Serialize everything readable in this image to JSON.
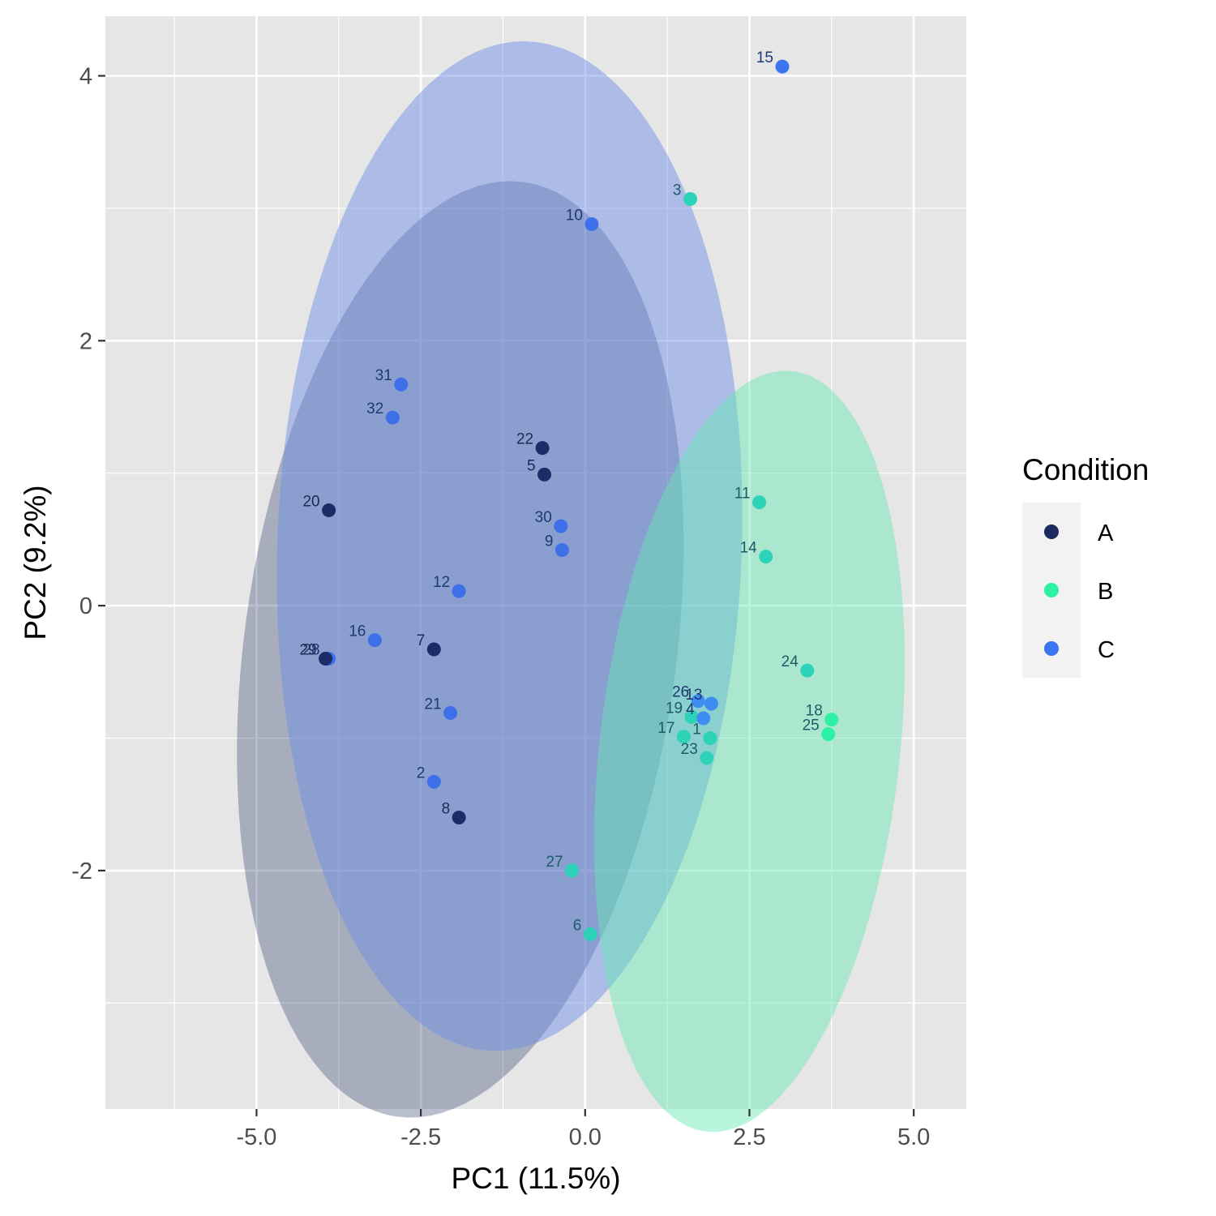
{
  "chart_data": {
    "type": "scatter",
    "title": "",
    "xlabel": "PC1 (11.5%)",
    "ylabel": "PC2 (9.2%)",
    "xlim": [
      -7.3,
      5.8
    ],
    "ylim": [
      -3.8,
      4.45
    ],
    "x_ticks": [
      -5.0,
      -2.5,
      0.0,
      2.5,
      5.0
    ],
    "x_tick_labels": [
      "-5.0",
      "-2.5",
      "0.0",
      "2.5",
      "5.0"
    ],
    "y_ticks": [
      4,
      2,
      0,
      -2
    ],
    "y_tick_labels": [
      "4",
      "2",
      "0",
      "-2"
    ],
    "grid": true,
    "legend": {
      "title": "Condition",
      "position": "right",
      "entries": [
        {
          "label": "A",
          "color": "#1a2a5e"
        },
        {
          "label": "B",
          "color": "#2ef0a6"
        },
        {
          "label": "C",
          "color": "#3d74ef"
        }
      ]
    },
    "ellipses": [
      {
        "group": "A",
        "fill": "#1c2a60",
        "opacity": 0.3,
        "cx": -1.9,
        "cy": -0.33,
        "rx": 3.84,
        "ry": 3.05,
        "angle_deg": 50
      },
      {
        "group": "C",
        "fill": "#6d8fe6",
        "opacity": 0.48,
        "cx": -1.15,
        "cy": 0.45,
        "rx": 3.85,
        "ry": 3.5,
        "angle_deg": 70
      },
      {
        "group": "B",
        "fill": "#62e8b2",
        "opacity": 0.45,
        "cx": 2.5,
        "cy": -1.1,
        "rx": 3.0,
        "ry": 2.2,
        "angle_deg": 65
      }
    ],
    "points": [
      {
        "label": "1",
        "x": 1.9,
        "y": -1.0,
        "group": "B"
      },
      {
        "label": "2",
        "x": -2.3,
        "y": -1.33,
        "group": "C"
      },
      {
        "label": "3",
        "x": 1.6,
        "y": 3.07,
        "group": "B"
      },
      {
        "label": "5",
        "x": -0.62,
        "y": 0.99,
        "group": "A"
      },
      {
        "label": "6",
        "x": 0.08,
        "y": -2.48,
        "group": "B"
      },
      {
        "label": "7",
        "x": -2.3,
        "y": -0.33,
        "group": "A"
      },
      {
        "label": "8",
        "x": -1.92,
        "y": -1.6,
        "group": "A"
      },
      {
        "label": "9",
        "x": -0.35,
        "y": 0.42,
        "group": "C"
      },
      {
        "label": "10",
        "x": 0.1,
        "y": 2.88,
        "group": "C"
      },
      {
        "label": "11",
        "x": 2.65,
        "y": 0.78,
        "group": "B"
      },
      {
        "label": "12",
        "x": -1.92,
        "y": 0.11,
        "group": "C"
      },
      {
        "label": "13",
        "x": 1.92,
        "y": -0.74,
        "group": "C"
      },
      {
        "label": "14",
        "x": 2.75,
        "y": 0.37,
        "group": "B"
      },
      {
        "label": "15",
        "x": 3.0,
        "y": 4.07,
        "group": "C"
      },
      {
        "label": "16",
        "x": -3.2,
        "y": -0.26,
        "group": "C"
      },
      {
        "label": "17",
        "x": 1.5,
        "y": -0.99,
        "group": "B"
      },
      {
        "label": "18",
        "x": 3.75,
        "y": -0.86,
        "group": "B"
      },
      {
        "label": "19",
        "x": 1.62,
        "y": -0.84,
        "group": "B"
      },
      {
        "label": "20",
        "x": -3.9,
        "y": 0.72,
        "group": "A"
      },
      {
        "label": "21",
        "x": -2.05,
        "y": -0.81,
        "group": "C"
      },
      {
        "label": "22",
        "x": -0.65,
        "y": 1.19,
        "group": "A"
      },
      {
        "label": "23",
        "x": 1.85,
        "y": -1.15,
        "group": "B"
      },
      {
        "label": "24",
        "x": 3.38,
        "y": -0.49,
        "group": "B"
      },
      {
        "label": "25",
        "x": 3.7,
        "y": -0.97,
        "group": "B"
      },
      {
        "label": "26",
        "x": 1.72,
        "y": -0.72,
        "group": "C"
      },
      {
        "label": "27",
        "x": -0.2,
        "y": -2.0,
        "group": "B"
      },
      {
        "label": "28",
        "x": -3.9,
        "y": -0.4,
        "group": "C"
      },
      {
        "label": "29",
        "x": -3.95,
        "y": -0.4,
        "group": "A"
      },
      {
        "label": "30",
        "x": -0.37,
        "y": 0.6,
        "group": "C"
      },
      {
        "label": "31",
        "x": -2.8,
        "y": 1.67,
        "group": "C"
      },
      {
        "label": "32",
        "x": -2.93,
        "y": 1.42,
        "group": "C"
      },
      {
        "label": "4",
        "x": 1.8,
        "y": -0.85,
        "group": "C"
      }
    ],
    "point_colors": {
      "1": "#2dd3b8",
      "2": "#3d6fe8",
      "3": "#2dd3b8",
      "5": "#1c2c66",
      "6": "#2dd3b8",
      "7": "#1c2c66",
      "8": "#1c2c66",
      "9": "#3d6fe8",
      "10": "#3d6fe8",
      "11": "#2dd3b8",
      "12": "#3d6fe8",
      "13": "#3d8ef0",
      "14": "#2dd3b8",
      "15": "#3d74ef",
      "16": "#3d6fe8",
      "17": "#2dd3b8",
      "18": "#2ef0a6",
      "19": "#2dd3b8",
      "20": "#1c2c66",
      "21": "#3d6fe8",
      "22": "#1c2c66",
      "23": "#2dd3b8",
      "24": "#2dd3b8",
      "25": "#2ef0a6",
      "26": "#3d8ef0",
      "27": "#2dd3b8",
      "28": "#3d6fe8",
      "29": "#1c2c66",
      "30": "#3d6fe8",
      "31": "#3d6fe8",
      "32": "#3d6fe8",
      "4": "#3d8ef0"
    }
  }
}
